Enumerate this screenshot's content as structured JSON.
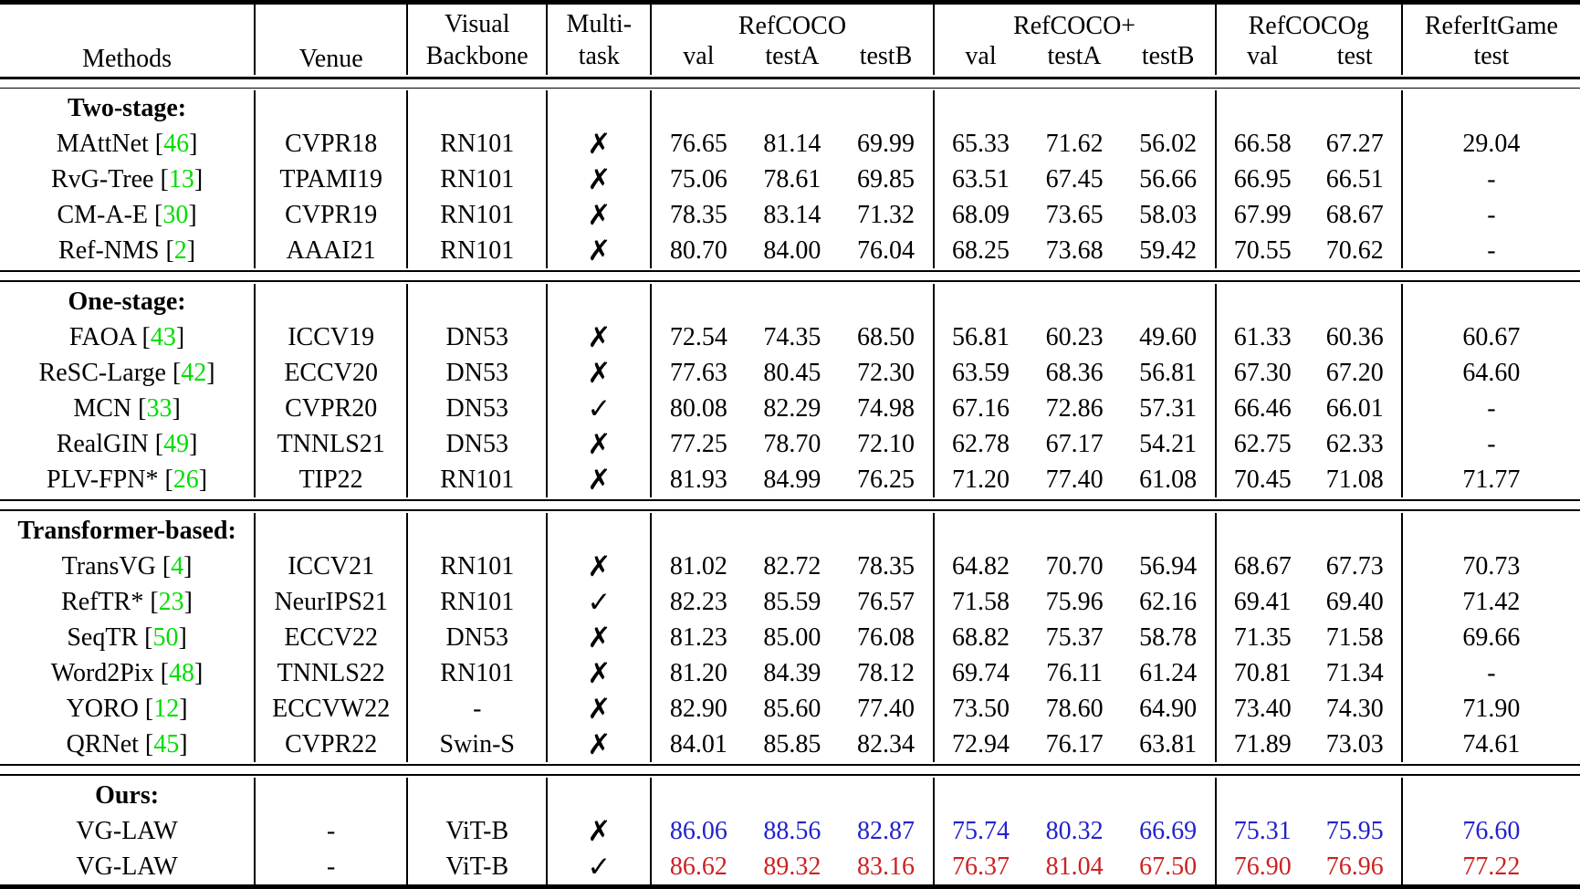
{
  "table": {
    "header": {
      "methods": "Methods",
      "venue": "Venue",
      "backbone_line1": "Visual",
      "backbone_line2": "Backbone",
      "multitask_line1": "Multi-",
      "multitask_line2": "task",
      "groups": [
        {
          "label": "RefCOCO",
          "cols": [
            "val",
            "testA",
            "testB"
          ]
        },
        {
          "label": "RefCOCO+",
          "cols": [
            "val",
            "testA",
            "testB"
          ]
        },
        {
          "label": "RefCOCOg",
          "cols": [
            "val",
            "test"
          ]
        },
        {
          "label": "ReferItGame",
          "cols": [
            "test"
          ]
        }
      ]
    },
    "symbols": {
      "yes": "✓",
      "no": "✗"
    },
    "colors": {
      "citation_green": "#00dd00",
      "highlight_blue": "#2222cc",
      "highlight_red": "#cc2222"
    },
    "sections": [
      {
        "label": "Two-stage:",
        "rows": [
          {
            "method": "MAttNet",
            "cite": "46",
            "venue": "CVPR18",
            "backbone": "RN101",
            "multitask": false,
            "highlight": null,
            "values": [
              "76.65",
              "81.14",
              "69.99",
              "65.33",
              "71.62",
              "56.02",
              "66.58",
              "67.27",
              "29.04"
            ]
          },
          {
            "method": "RvG-Tree",
            "cite": "13",
            "venue": "TPAMI19",
            "backbone": "RN101",
            "multitask": false,
            "highlight": null,
            "values": [
              "75.06",
              "78.61",
              "69.85",
              "63.51",
              "67.45",
              "56.66",
              "66.95",
              "66.51",
              "-"
            ]
          },
          {
            "method": "CM-A-E",
            "cite": "30",
            "venue": "CVPR19",
            "backbone": "RN101",
            "multitask": false,
            "highlight": null,
            "values": [
              "78.35",
              "83.14",
              "71.32",
              "68.09",
              "73.65",
              "58.03",
              "67.99",
              "68.67",
              "-"
            ]
          },
          {
            "method": "Ref-NMS",
            "cite": "2",
            "venue": "AAAI21",
            "backbone": "RN101",
            "multitask": false,
            "highlight": null,
            "values": [
              "80.70",
              "84.00",
              "76.04",
              "68.25",
              "73.68",
              "59.42",
              "70.55",
              "70.62",
              "-"
            ]
          }
        ]
      },
      {
        "label": "One-stage:",
        "rows": [
          {
            "method": "FAOA",
            "cite": "43",
            "venue": "ICCV19",
            "backbone": "DN53",
            "multitask": false,
            "highlight": null,
            "values": [
              "72.54",
              "74.35",
              "68.50",
              "56.81",
              "60.23",
              "49.60",
              "61.33",
              "60.36",
              "60.67"
            ]
          },
          {
            "method": "ReSC-Large",
            "cite": "42",
            "venue": "ECCV20",
            "backbone": "DN53",
            "multitask": false,
            "highlight": null,
            "values": [
              "77.63",
              "80.45",
              "72.30",
              "63.59",
              "68.36",
              "56.81",
              "67.30",
              "67.20",
              "64.60"
            ]
          },
          {
            "method": "MCN",
            "cite": "33",
            "venue": "CVPR20",
            "backbone": "DN53",
            "multitask": true,
            "highlight": null,
            "values": [
              "80.08",
              "82.29",
              "74.98",
              "67.16",
              "72.86",
              "57.31",
              "66.46",
              "66.01",
              "-"
            ]
          },
          {
            "method": "RealGIN",
            "cite": "49",
            "venue": "TNNLS21",
            "backbone": "DN53",
            "multitask": false,
            "highlight": null,
            "values": [
              "77.25",
              "78.70",
              "72.10",
              "62.78",
              "67.17",
              "54.21",
              "62.75",
              "62.33",
              "-"
            ]
          },
          {
            "method": "PLV-FPN*",
            "cite": "26",
            "venue": "TIP22",
            "backbone": "RN101",
            "multitask": false,
            "highlight": null,
            "values": [
              "81.93",
              "84.99",
              "76.25",
              "71.20",
              "77.40",
              "61.08",
              "70.45",
              "71.08",
              "71.77"
            ]
          }
        ]
      },
      {
        "label": "Transformer-based:",
        "rows": [
          {
            "method": "TransVG",
            "cite": "4",
            "venue": "ICCV21",
            "backbone": "RN101",
            "multitask": false,
            "highlight": null,
            "values": [
              "81.02",
              "82.72",
              "78.35",
              "64.82",
              "70.70",
              "56.94",
              "68.67",
              "67.73",
              "70.73"
            ]
          },
          {
            "method": "RefTR*",
            "cite": "23",
            "venue": "NeurIPS21",
            "backbone": "RN101",
            "multitask": true,
            "highlight": null,
            "values": [
              "82.23",
              "85.59",
              "76.57",
              "71.58",
              "75.96",
              "62.16",
              "69.41",
              "69.40",
              "71.42"
            ]
          },
          {
            "method": "SeqTR",
            "cite": "50",
            "venue": "ECCV22",
            "backbone": "DN53",
            "multitask": false,
            "highlight": null,
            "values": [
              "81.23",
              "85.00",
              "76.08",
              "68.82",
              "75.37",
              "58.78",
              "71.35",
              "71.58",
              "69.66"
            ]
          },
          {
            "method": "Word2Pix",
            "cite": "48",
            "venue": "TNNLS22",
            "backbone": "RN101",
            "multitask": false,
            "highlight": null,
            "values": [
              "81.20",
              "84.39",
              "78.12",
              "69.74",
              "76.11",
              "61.24",
              "70.81",
              "71.34",
              "-"
            ]
          },
          {
            "method": "YORO",
            "cite": "12",
            "venue": "ECCVW22",
            "backbone": "-",
            "multitask": false,
            "highlight": null,
            "values": [
              "82.90",
              "85.60",
              "77.40",
              "73.50",
              "78.60",
              "64.90",
              "73.40",
              "74.30",
              "71.90"
            ]
          },
          {
            "method": "QRNet",
            "cite": "45",
            "venue": "CVPR22",
            "backbone": "Swin-S",
            "multitask": false,
            "highlight": null,
            "values": [
              "84.01",
              "85.85",
              "82.34",
              "72.94",
              "76.17",
              "63.81",
              "71.89",
              "73.03",
              "74.61"
            ]
          }
        ]
      },
      {
        "label": "Ours:",
        "rows": [
          {
            "method": "VG-LAW",
            "cite": null,
            "venue": "-",
            "backbone": "ViT-B",
            "multitask": false,
            "highlight": "blue",
            "values": [
              "86.06",
              "88.56",
              "82.87",
              "75.74",
              "80.32",
              "66.69",
              "75.31",
              "75.95",
              "76.60"
            ]
          },
          {
            "method": "VG-LAW",
            "cite": null,
            "venue": "-",
            "backbone": "ViT-B",
            "multitask": true,
            "highlight": "red",
            "values": [
              "86.62",
              "89.32",
              "83.16",
              "76.37",
              "81.04",
              "67.50",
              "76.90",
              "76.96",
              "77.22"
            ]
          }
        ]
      }
    ]
  }
}
